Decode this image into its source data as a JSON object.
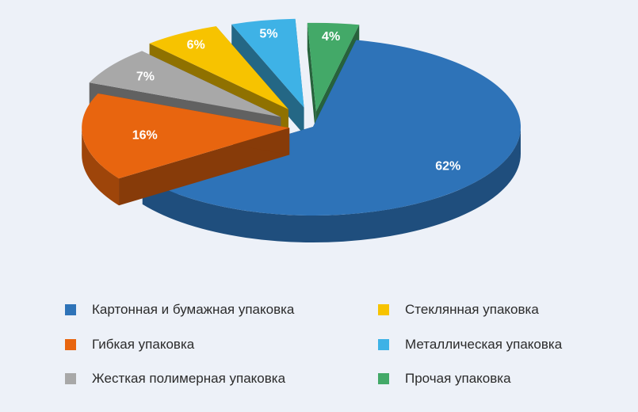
{
  "chart_data": {
    "type": "pie",
    "style": "3d-exploded",
    "title": "",
    "slices": [
      {
        "label": "Картонная и бумажная упаковка",
        "value": 62,
        "value_label": "62%",
        "color": "#2e73b8"
      },
      {
        "label": "Гибкая упаковка",
        "value": 16,
        "value_label": "16%",
        "color": "#e8650f"
      },
      {
        "label": "Жесткая полимерная упаковка",
        "value": 7,
        "value_label": "7%",
        "color": "#a8a8a8"
      },
      {
        "label": "Стеклянная упаковка",
        "value": 6,
        "value_label": "6%",
        "color": "#f7c300"
      },
      {
        "label": "Металлическая упаковка",
        "value": 5,
        "value_label": "5%",
        "color": "#3eb2e6"
      },
      {
        "label": "Прочая упаковка",
        "value": 4,
        "value_label": "4%",
        "color": "#43a968"
      }
    ],
    "legend_placement": "bottom"
  }
}
